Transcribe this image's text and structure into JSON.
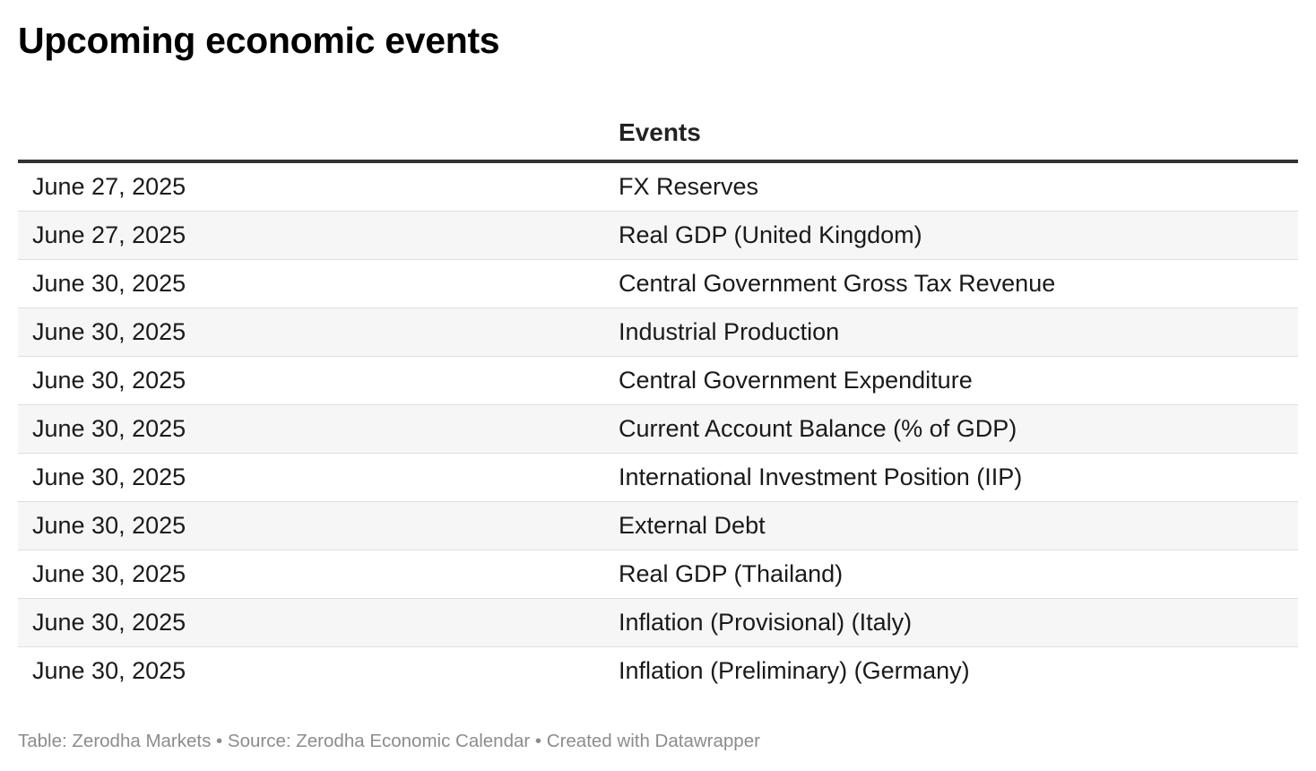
{
  "title": "Upcoming economic events",
  "footer": {
    "text": "Table: Zerodha Markets • Source: Zerodha Economic Calendar • Created with Datawrapper"
  },
  "chart_data": {
    "type": "table",
    "title": "Upcoming economic events",
    "columns": [
      "",
      "Events"
    ],
    "rows": [
      [
        "June 27, 2025",
        "FX Reserves"
      ],
      [
        "June 27, 2025",
        "Real GDP (United Kingdom)"
      ],
      [
        "June 30, 2025",
        "Central Government Gross Tax Revenue"
      ],
      [
        "June 30, 2025",
        "Industrial Production"
      ],
      [
        "June 30, 2025",
        "Central Government Expenditure"
      ],
      [
        "June 30, 2025",
        "Current Account Balance (% of GDP)"
      ],
      [
        "June 30, 2025",
        "International Investment Position (IIP)"
      ],
      [
        "June 30, 2025",
        "External Debt"
      ],
      [
        "June 30, 2025",
        "Real GDP (Thailand)"
      ],
      [
        "June 30, 2025",
        "Inflation (Provisional) (Italy)"
      ],
      [
        "June 30, 2025",
        "Inflation (Preliminary) (Germany)"
      ]
    ]
  }
}
